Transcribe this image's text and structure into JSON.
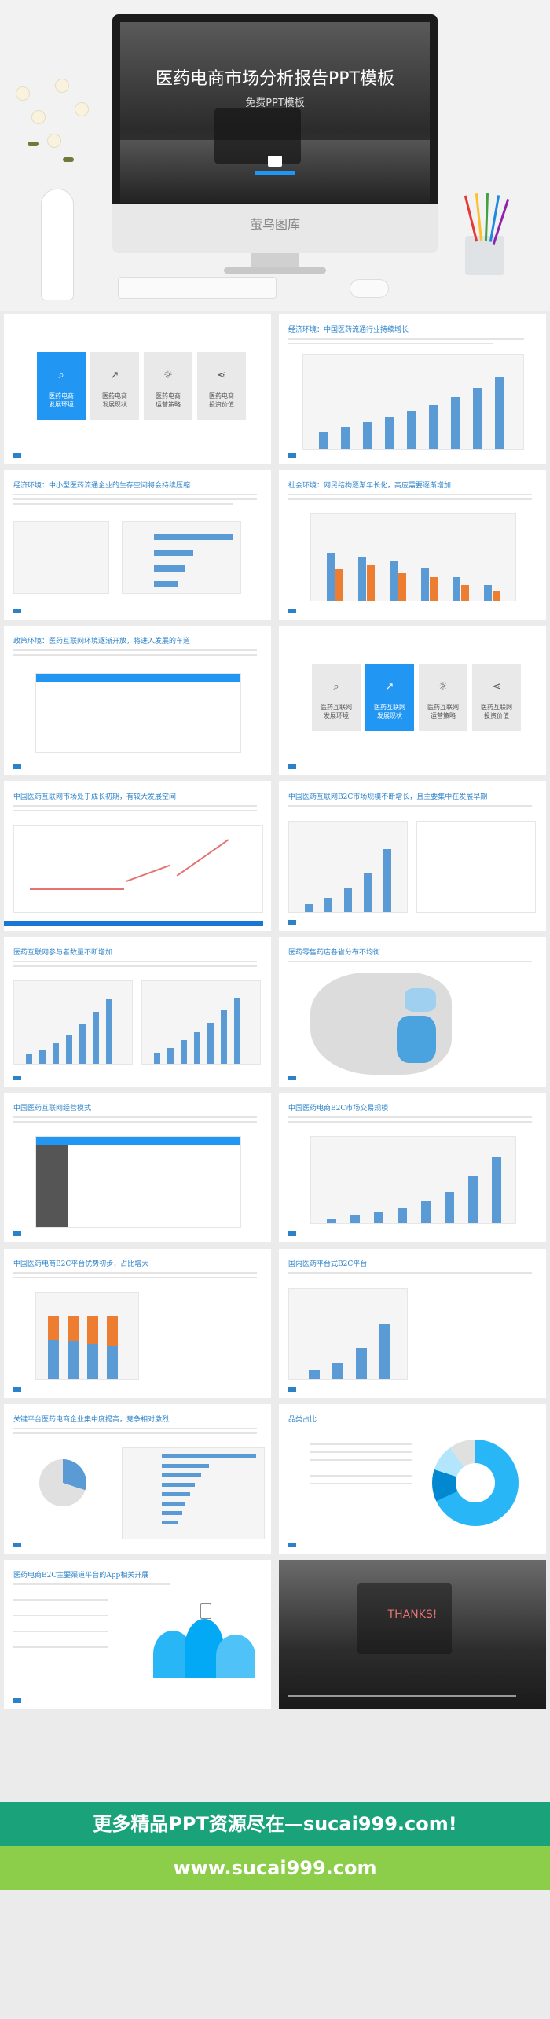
{
  "hero": {
    "title": "医药电商市场分析报告PPT模板",
    "subtitle": "免费PPT模板",
    "monitor_brand": "萤鸟图库"
  },
  "slides": {
    "s2_title": "经济环境：中国医药流通行业持续增长",
    "s3_title": "经济环境：中小型医药流通企业的生存空间将会持续压缩",
    "s4_title": "社会环境：网民结构逐渐年长化，高应需要逐渐增加",
    "s5_title": "政策环境：医药互联网环境逐渐开放，将进入发展的车道",
    "s7_title": "中国医药互联网市场处于成长初期，有较大发展空间",
    "s8_title": "中国医药互联网B2C市场规模不断增长，且主要集中在发展早期",
    "s9_title": "医药互联网参与者数量不断增加",
    "s10_title": "医药零售药店各省分布不均衡",
    "s11_title": "中国医药互联网经营模式",
    "s12_title": "中国医药电商B2C市场交易规模",
    "s13_title": "中国医药电商B2C平台优势初步，占比增大",
    "s14_title": "国内医药平台式B2C平台",
    "s15_title": "关键平台医药电商企业集中度提高，竞争相对激烈",
    "s16_title": "品类占比",
    "s17_title": "医药电商B2C主要渠道平台的App相关开展",
    "s18_title": "THANKS!"
  },
  "menu": {
    "tiles": [
      {
        "label1": "医药电商",
        "label2": "发展环境",
        "icon": "search-icon"
      },
      {
        "label1": "医药电商",
        "label2": "发展现状",
        "icon": "chart-icon"
      },
      {
        "label1": "医药电商",
        "label2": "运营策略",
        "icon": "bulb-icon"
      },
      {
        "label1": "医药电商",
        "label2": "投资价值",
        "icon": "share-icon"
      }
    ],
    "tiles2": [
      {
        "label1": "医药互联网",
        "label2": "发展环境",
        "icon": "search-icon"
      },
      {
        "label1": "医药互联网",
        "label2": "发展现状",
        "icon": "chart-icon"
      },
      {
        "label1": "医药互联网",
        "label2": "运营策略",
        "icon": "bulb-icon"
      },
      {
        "label1": "医药互联网",
        "label2": "投资价值",
        "icon": "share-icon"
      }
    ]
  },
  "banners": {
    "line1": "更多精品PPT资源尽在—sucai999.com!",
    "line2": "www.sucai999.com"
  },
  "colors": {
    "accent": "#2196f3",
    "title_blue": "#2b82c9",
    "banner_green": "#1aa37a",
    "banner_lime": "#8ccd4a"
  }
}
